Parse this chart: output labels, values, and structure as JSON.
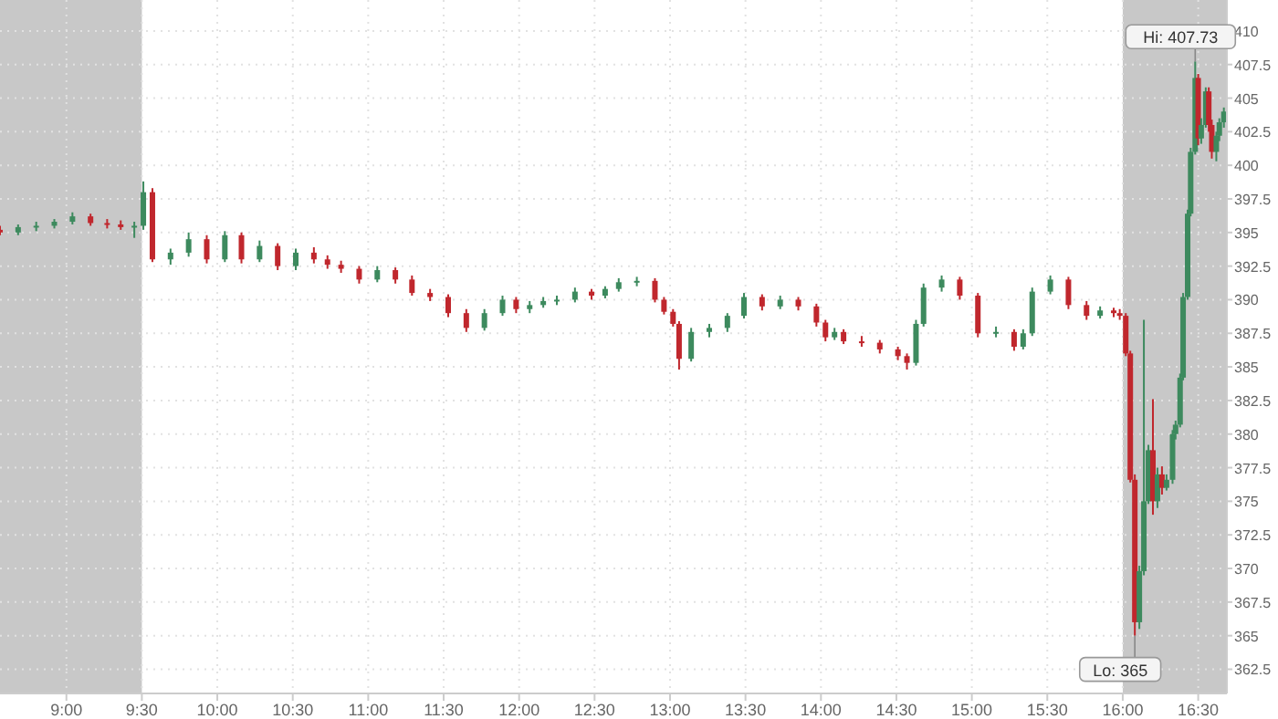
{
  "chart_data": {
    "type": "candlestick",
    "x": [
      8.56,
      8.68,
      8.8,
      8.92,
      9.04,
      9.16,
      9.27,
      9.36,
      9.45,
      9.51,
      9.57,
      9.69,
      9.81,
      9.93,
      10.05,
      10.16,
      10.28,
      10.4,
      10.52,
      10.64,
      10.73,
      10.82,
      10.94,
      11.06,
      11.18,
      11.29,
      11.41,
      11.53,
      11.65,
      11.77,
      11.89,
      11.98,
      12.07,
      12.16,
      12.25,
      12.37,
      12.48,
      12.57,
      12.66,
      12.78,
      12.9,
      12.96,
      13.02,
      13.06,
      13.14,
      13.26,
      13.38,
      13.49,
      13.61,
      13.73,
      13.85,
      13.97,
      14.03,
      14.09,
      14.15,
      14.27,
      14.39,
      14.51,
      14.57,
      14.63,
      14.68,
      14.8,
      14.92,
      15.04,
      15.16,
      15.28,
      15.34,
      15.4,
      15.52,
      15.64,
      15.76,
      15.85,
      15.94,
      15.98,
      16.02,
      16.05,
      16.08,
      16.11,
      16.14,
      16.17,
      16.2,
      16.23,
      16.26,
      16.29,
      16.33,
      16.35,
      16.38,
      16.4,
      16.43,
      16.45,
      16.48,
      16.5,
      16.52,
      16.55,
      16.57,
      16.59,
      16.62,
      16.64,
      16.67
    ],
    "ohlc": [
      [
        395.2,
        395.5,
        394.8,
        395.0
      ],
      [
        395.0,
        395.6,
        394.8,
        395.4
      ],
      [
        395.4,
        395.8,
        395.1,
        395.5
      ],
      [
        395.5,
        396.0,
        395.3,
        395.8
      ],
      [
        395.8,
        396.5,
        395.6,
        396.2
      ],
      [
        396.2,
        396.4,
        395.5,
        395.7
      ],
      [
        395.7,
        396.0,
        395.3,
        395.6
      ],
      [
        395.6,
        395.9,
        395.2,
        395.4
      ],
      [
        395.4,
        395.8,
        394.6,
        395.5
      ],
      [
        395.5,
        398.8,
        395.2,
        398.0
      ],
      [
        398.0,
        398.3,
        392.8,
        393.0
      ],
      [
        393.0,
        393.8,
        392.6,
        393.5
      ],
      [
        393.5,
        395.0,
        393.2,
        394.5
      ],
      [
        394.5,
        394.8,
        392.7,
        393.0
      ],
      [
        393.0,
        395.1,
        392.8,
        394.8
      ],
      [
        394.8,
        395.0,
        392.7,
        393.0
      ],
      [
        393.0,
        394.4,
        392.8,
        394.0
      ],
      [
        394.0,
        394.2,
        392.2,
        392.5
      ],
      [
        392.5,
        393.8,
        392.2,
        393.5
      ],
      [
        393.5,
        393.9,
        392.7,
        393.0
      ],
      [
        393.0,
        393.3,
        392.3,
        392.6
      ],
      [
        392.6,
        392.9,
        392.0,
        392.3
      ],
      [
        392.3,
        392.5,
        391.2,
        391.5
      ],
      [
        391.5,
        392.5,
        391.3,
        392.2
      ],
      [
        392.2,
        392.4,
        391.2,
        391.5
      ],
      [
        391.5,
        391.8,
        390.3,
        390.5
      ],
      [
        390.5,
        390.8,
        389.9,
        390.2
      ],
      [
        390.2,
        390.4,
        388.7,
        389.0
      ],
      [
        389.0,
        389.3,
        387.6,
        387.9
      ],
      [
        387.9,
        389.3,
        387.7,
        389.0
      ],
      [
        389.0,
        390.3,
        388.8,
        390.0
      ],
      [
        390.0,
        390.2,
        389.0,
        389.3
      ],
      [
        389.3,
        389.9,
        389.0,
        389.6
      ],
      [
        389.6,
        390.2,
        389.4,
        389.9
      ],
      [
        389.9,
        390.3,
        389.6,
        390.0
      ],
      [
        390.0,
        390.9,
        389.8,
        390.6
      ],
      [
        390.6,
        390.8,
        390.0,
        390.3
      ],
      [
        390.3,
        391.0,
        390.1,
        390.8
      ],
      [
        390.8,
        391.6,
        390.6,
        391.3
      ],
      [
        391.3,
        391.7,
        391.0,
        391.4
      ],
      [
        391.4,
        391.6,
        389.8,
        390.0
      ],
      [
        390.0,
        390.2,
        388.9,
        389.1
      ],
      [
        389.1,
        389.3,
        388.0,
        388.2
      ],
      [
        388.2,
        388.4,
        384.8,
        385.6
      ],
      [
        385.6,
        387.9,
        385.4,
        387.6
      ],
      [
        387.6,
        388.2,
        387.2,
        387.9
      ],
      [
        387.9,
        389.0,
        387.6,
        388.8
      ],
      [
        388.8,
        390.5,
        388.6,
        390.2
      ],
      [
        390.2,
        390.4,
        389.2,
        389.5
      ],
      [
        389.5,
        390.3,
        389.3,
        390.0
      ],
      [
        390.0,
        390.2,
        389.2,
        389.5
      ],
      [
        389.5,
        389.7,
        388.0,
        388.3
      ],
      [
        388.3,
        388.5,
        386.9,
        387.2
      ],
      [
        387.2,
        387.9,
        387.0,
        387.6
      ],
      [
        387.6,
        387.8,
        386.7,
        386.9
      ],
      [
        386.9,
        387.3,
        386.5,
        386.8
      ],
      [
        386.8,
        387.0,
        386.0,
        386.3
      ],
      [
        386.3,
        386.5,
        385.5,
        385.8
      ],
      [
        385.8,
        386.0,
        384.8,
        385.3
      ],
      [
        385.3,
        388.5,
        385.1,
        388.2
      ],
      [
        388.2,
        391.2,
        388.0,
        390.9
      ],
      [
        390.9,
        391.8,
        390.6,
        391.5
      ],
      [
        391.5,
        391.7,
        390.0,
        390.3
      ],
      [
        390.3,
        390.5,
        387.2,
        387.5
      ],
      [
        387.5,
        388.0,
        387.2,
        387.6
      ],
      [
        387.6,
        387.8,
        386.2,
        386.5
      ],
      [
        386.5,
        387.8,
        386.3,
        387.5
      ],
      [
        387.5,
        390.9,
        387.3,
        390.6
      ],
      [
        390.6,
        391.8,
        390.4,
        391.5
      ],
      [
        391.5,
        391.7,
        389.3,
        389.6
      ],
      [
        389.6,
        389.9,
        388.5,
        388.8
      ],
      [
        388.8,
        389.5,
        388.6,
        389.2
      ],
      [
        389.2,
        389.4,
        388.7,
        389.0
      ],
      [
        389.0,
        389.3,
        388.5,
        388.8
      ],
      [
        388.8,
        389.0,
        385.8,
        386.0
      ],
      [
        386.0,
        386.2,
        376.4,
        376.6
      ],
      [
        376.6,
        377.0,
        365.0,
        366.0
      ],
      [
        366.0,
        370.2,
        365.5,
        369.8
      ],
      [
        369.8,
        388.5,
        369.5,
        375.0
      ],
      [
        375.0,
        379.2,
        374.8,
        378.8
      ],
      [
        378.8,
        382.6,
        374.0,
        375.0
      ],
      [
        375.0,
        377.5,
        374.5,
        377.0
      ],
      [
        377.0,
        377.6,
        375.5,
        376.0
      ],
      [
        376.0,
        377.0,
        375.8,
        376.6
      ],
      [
        376.6,
        380.3,
        376.3,
        380.0
      ],
      [
        380.0,
        381.0,
        379.6,
        380.7
      ],
      [
        380.7,
        384.5,
        380.5,
        384.2
      ],
      [
        384.2,
        390.5,
        384.0,
        390.2
      ],
      [
        390.2,
        396.7,
        390.0,
        396.4
      ],
      [
        396.4,
        401.3,
        396.2,
        401.0
      ],
      [
        401.0,
        407.73,
        400.8,
        406.5
      ],
      [
        406.5,
        406.8,
        401.5,
        402.0
      ],
      [
        402.0,
        403.5,
        401.6,
        403.0
      ],
      [
        403.0,
        405.8,
        402.8,
        405.5
      ],
      [
        405.5,
        405.8,
        402.5,
        403.0
      ],
      [
        403.0,
        403.4,
        400.5,
        401.0
      ],
      [
        401.0,
        402.5,
        400.3,
        402.2
      ],
      [
        402.2,
        403.5,
        401.8,
        403.2
      ],
      [
        403.2,
        404.3,
        402.8,
        404.0
      ]
    ],
    "colors": [
      "#c0272d",
      "#3d8a5e",
      "#3d8a5e",
      "#3d8a5e",
      "#3d8a5e",
      "#c0272d",
      "#c0272d",
      "#c0272d",
      "#3d8a5e",
      "#3d8a5e",
      "#c0272d",
      "#3d8a5e",
      "#3d8a5e",
      "#c0272d",
      "#3d8a5e",
      "#c0272d",
      "#3d8a5e",
      "#c0272d",
      "#3d8a5e",
      "#c0272d",
      "#c0272d",
      "#c0272d",
      "#c0272d",
      "#3d8a5e",
      "#c0272d",
      "#c0272d",
      "#c0272d",
      "#c0272d",
      "#c0272d",
      "#3d8a5e",
      "#3d8a5e",
      "#c0272d",
      "#3d8a5e",
      "#3d8a5e",
      "#3d8a5e",
      "#3d8a5e",
      "#c0272d",
      "#3d8a5e",
      "#3d8a5e",
      "#3d8a5e",
      "#c0272d",
      "#c0272d",
      "#c0272d",
      "#c0272d",
      "#3d8a5e",
      "#3d8a5e",
      "#3d8a5e",
      "#3d8a5e",
      "#c0272d",
      "#3d8a5e",
      "#c0272d",
      "#c0272d",
      "#c0272d",
      "#3d8a5e",
      "#c0272d",
      "#c0272d",
      "#c0272d",
      "#c0272d",
      "#c0272d",
      "#3d8a5e",
      "#3d8a5e",
      "#3d8a5e",
      "#c0272d",
      "#c0272d",
      "#3d8a5e",
      "#c0272d",
      "#3d8a5e",
      "#3d8a5e",
      "#3d8a5e",
      "#c0272d",
      "#c0272d",
      "#3d8a5e",
      "#c0272d",
      "#c0272d",
      "#c0272d",
      "#c0272d",
      "#c0272d",
      "#3d8a5e",
      "#3d8a5e",
      "#3d8a5e",
      "#c0272d",
      "#3d8a5e",
      "#c0272d",
      "#3d8a5e",
      "#3d8a5e",
      "#3d8a5e",
      "#3d8a5e",
      "#3d8a5e",
      "#3d8a5e",
      "#3d8a5e",
      "#3d8a5e",
      "#c0272d",
      "#3d8a5e",
      "#3d8a5e",
      "#c0272d",
      "#c0272d",
      "#3d8a5e",
      "#3d8a5e",
      "#3d8a5e"
    ],
    "xlim": [
      8.56,
      16.69
    ],
    "xticks": [
      {
        "value": 9,
        "label": "9:00"
      },
      {
        "value": 9.5,
        "label": "9:30"
      },
      {
        "value": 10,
        "label": "10:00"
      },
      {
        "value": 10.5,
        "label": "10:30"
      },
      {
        "value": 11,
        "label": "11:00"
      },
      {
        "value": 11.5,
        "label": "11:30"
      },
      {
        "value": 12,
        "label": "12:00"
      },
      {
        "value": 12.5,
        "label": "12:30"
      },
      {
        "value": 13,
        "label": "13:00"
      },
      {
        "value": 13.5,
        "label": "13:30"
      },
      {
        "value": 14,
        "label": "14:00"
      },
      {
        "value": 14.5,
        "label": "14:30"
      },
      {
        "value": 15,
        "label": "15:00"
      },
      {
        "value": 15.5,
        "label": "15:30"
      },
      {
        "value": 16,
        "label": "16:00"
      },
      {
        "value": 16.5,
        "label": "16:30"
      }
    ],
    "ylim": [
      360.7,
      412.3
    ],
    "yticks": [
      362.5,
      365,
      367.5,
      370,
      372.5,
      375,
      377.5,
      380,
      382.5,
      385,
      387.5,
      390,
      392.5,
      395,
      397.5,
      400,
      402.5,
      405,
      407.5,
      410
    ],
    "grid": true,
    "line_style": "dotted",
    "bands": [
      {
        "axis": "x",
        "from": 8.56,
        "to": 9.5,
        "color": "#c8c8c8"
      },
      {
        "axis": "x",
        "from": 16,
        "to": 16.69,
        "color": "#c8c8c8"
      }
    ],
    "annotations": [
      {
        "text": "Hi: 407.73",
        "x": 16.48,
        "y": 407.73
      },
      {
        "text": "Lo: 365",
        "x": 16.08,
        "y": 365
      }
    ]
  }
}
